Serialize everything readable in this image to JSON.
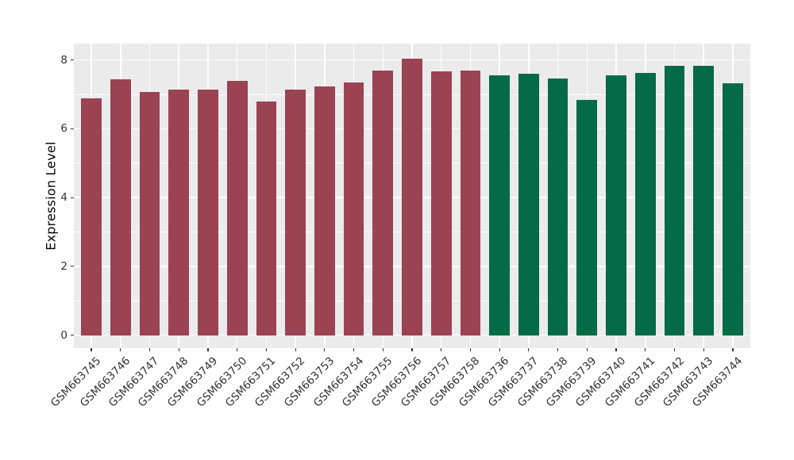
{
  "chart_data": {
    "type": "bar",
    "title": "",
    "xlabel": "",
    "ylabel": "Expression Level",
    "categories": [
      "GSM663745",
      "GSM663746",
      "GSM663747",
      "GSM663748",
      "GSM663749",
      "GSM663750",
      "GSM663751",
      "GSM663752",
      "GSM663753",
      "GSM663754",
      "GSM663755",
      "GSM663756",
      "GSM663757",
      "GSM663758",
      "GSM663736",
      "GSM663737",
      "GSM663738",
      "GSM663739",
      "GSM663740",
      "GSM663741",
      "GSM663742",
      "GSM663743",
      "GSM663744"
    ],
    "values": [
      6.88,
      7.43,
      7.07,
      7.13,
      7.14,
      7.4,
      6.8,
      7.15,
      7.23,
      7.34,
      7.69,
      8.03,
      7.67,
      7.7,
      7.56,
      7.61,
      7.47,
      6.83,
      7.56,
      7.62,
      7.83,
      7.83,
      7.33
    ],
    "bar_groups": [
      {
        "color": "#9B4253",
        "start_index": 0,
        "count": 14
      },
      {
        "color": "#056A47",
        "start_index": 14,
        "count": 9
      }
    ],
    "yticks": [
      0,
      2,
      4,
      6,
      8
    ],
    "yticks_minor": [
      1,
      3,
      5,
      7
    ],
    "ylim": [
      -0.4,
      8.48
    ],
    "grid": "major-and-minor",
    "legend": "none",
    "colors": {
      "panel_background": "#EBEBEB",
      "gridline": "#FFFFFF",
      "axis_text": "#333333",
      "axis_title": "#000000",
      "tick_mark": "#333333",
      "figure_background": "#FFFFFF"
    }
  }
}
